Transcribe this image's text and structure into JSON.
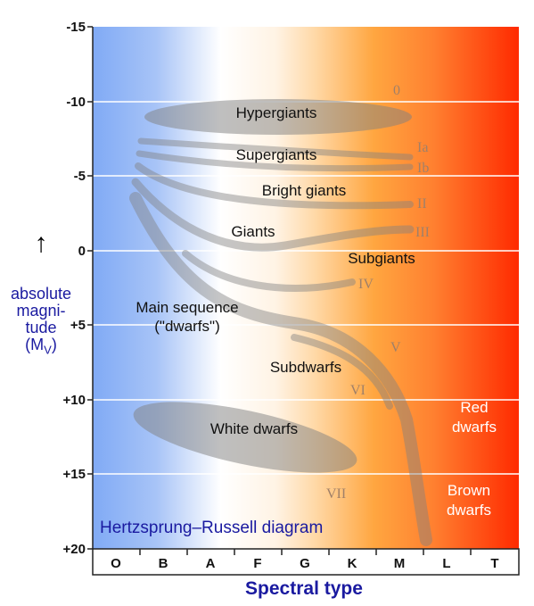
{
  "diagram": {
    "title": "Hertzsprung–Russell diagram",
    "xlabel": "Spectral type",
    "ylabel": {
      "arrow": "↑",
      "lines": [
        "absolute",
        "magni-",
        "tude"
      ],
      "unit_prefix": "(M",
      "unit_sub": "V",
      "unit_suffix": ")"
    },
    "y_ticks": [
      "-15",
      "-10",
      "-5",
      "0",
      "+5",
      "+10",
      "+15",
      "+20"
    ],
    "spectral_types": [
      "O",
      "B",
      "A",
      "F",
      "G",
      "K",
      "M",
      "L",
      "T"
    ],
    "regions": {
      "hypergiants": "Hypergiants",
      "supergiants": "Supergiants",
      "bright_giants": "Bright giants",
      "giants": "Giants",
      "subgiants": "Subgiants",
      "main_sequence_1": "Main sequence",
      "main_sequence_2": "(\"dwarfs\")",
      "subdwarfs": "Subdwarfs",
      "white_dwarfs": "White dwarfs",
      "red_dwarfs_1": "Red",
      "red_dwarfs_2": "dwarfs",
      "brown_dwarfs_1": "Brown",
      "brown_dwarfs_2": "dwarfs"
    },
    "luminosity_classes": {
      "c0": "0",
      "ia": "Ia",
      "ib": "Ib",
      "ii": "II",
      "iii": "III",
      "iv": "IV",
      "v": "V",
      "vi": "VI",
      "vii": "VII"
    },
    "colors": {
      "blue": "#80aaf5",
      "white": "#ffffff",
      "orange": "#ffa640",
      "red": "#ff2a00",
      "band": "#808080",
      "class_label": "#a08068",
      "title": "#1a1aa0"
    }
  }
}
